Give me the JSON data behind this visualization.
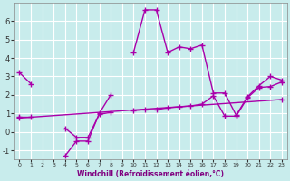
{
  "xlabel": "Windchill (Refroidissement éolien,°C)",
  "background_color": "#c8ecec",
  "grid_color": "#ffffff",
  "line_color": "#aa00aa",
  "series1": [
    3.2,
    2.6,
    null,
    null,
    -1.3,
    -0.5,
    -0.5,
    1.0,
    2.0,
    null,
    4.3,
    6.6,
    6.6,
    4.3,
    4.6,
    4.5,
    4.7,
    2.1,
    2.1,
    0.9,
    1.9,
    2.5,
    3.0,
    2.8
  ],
  "series2": [
    0.8,
    0.8,
    null,
    null,
    0.2,
    -0.3,
    -0.3,
    0.95,
    1.05,
    null,
    1.15,
    1.2,
    1.2,
    1.3,
    1.35,
    1.4,
    1.5,
    1.95,
    0.85,
    0.85,
    1.85,
    2.4,
    2.45,
    2.7
  ],
  "series3_x": [
    0,
    23
  ],
  "series3_y": [
    0.75,
    1.75
  ],
  "ylim": [
    -1.5,
    7.0
  ],
  "xlim": [
    -0.5,
    23.5
  ],
  "yticks": [
    -1,
    0,
    1,
    2,
    3,
    4,
    5,
    6
  ],
  "xticks": [
    0,
    1,
    2,
    3,
    4,
    5,
    6,
    7,
    8,
    9,
    10,
    11,
    12,
    13,
    14,
    15,
    16,
    17,
    18,
    19,
    20,
    21,
    22,
    23
  ]
}
